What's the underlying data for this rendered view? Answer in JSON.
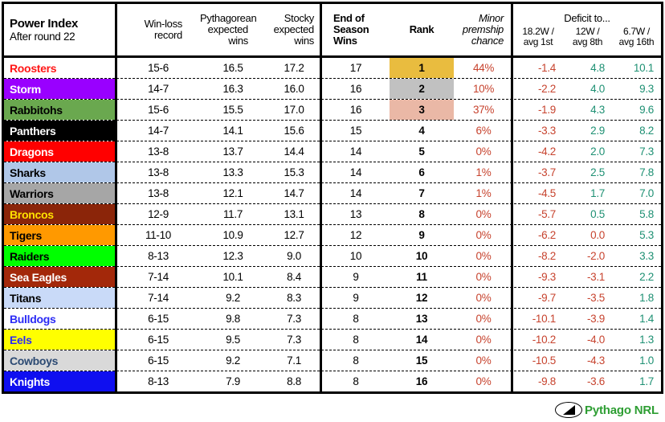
{
  "title": {
    "line1": "Power Index",
    "line2": "After round 22"
  },
  "headers": {
    "win_loss": "Win-loss\nrecord",
    "pythagorean": "Pythagorean\nexpected\nwins",
    "stocky": "Stocky\nexpected\nwins",
    "end_of_season": "End of\nSeason\nWins",
    "rank": "Rank",
    "chance": "Minor\npremship\nchance",
    "deficit_title": "Deficit to...",
    "deficit_col1": "18.2W /\navg 1st",
    "deficit_col2": "12W /\navg 8th",
    "deficit_col3": "6.7W /\navg 16th"
  },
  "colors": {
    "positive": "#1E9073",
    "negative": "#C7432E",
    "logo_green": "#2E9E33",
    "rank_gold": "#E9BC3F",
    "rank_silver": "#C1C1C1",
    "rank_bronze": "#EAB8A6"
  },
  "teams": [
    {
      "name": "Roosters",
      "bg": "#FFFFFF",
      "fg": "#FF1616",
      "record": "15-6",
      "pyth": "16.5",
      "stocky": "17.2",
      "eos": "17",
      "rank": "1",
      "rank_bg": "#E9BC3F",
      "chance": "44%",
      "d1": "-1.4",
      "d2": "4.8",
      "d3": "10.1"
    },
    {
      "name": "Storm",
      "bg": "#9900FF",
      "fg": "#FFFFFF",
      "record": "14-7",
      "pyth": "16.3",
      "stocky": "16.0",
      "eos": "16",
      "rank": "2",
      "rank_bg": "#C1C1C1",
      "chance": "10%",
      "d1": "-2.2",
      "d2": "4.0",
      "d3": "9.3"
    },
    {
      "name": "Rabbitohs",
      "bg": "#6AA84F",
      "fg": "#000000",
      "record": "15-6",
      "pyth": "15.5",
      "stocky": "17.0",
      "eos": "16",
      "rank": "3",
      "rank_bg": "#EAB8A6",
      "chance": "37%",
      "d1": "-1.9",
      "d2": "4.3",
      "d3": "9.6"
    },
    {
      "name": "Panthers",
      "bg": "#000000",
      "fg": "#FFFFFF",
      "record": "14-7",
      "pyth": "14.1",
      "stocky": "15.6",
      "eos": "15",
      "rank": "4",
      "chance": "6%",
      "d1": "-3.3",
      "d2": "2.9",
      "d3": "8.2"
    },
    {
      "name": "Dragons",
      "bg": "#FF0000",
      "fg": "#FFFFFF",
      "record": "13-8",
      "pyth": "13.7",
      "stocky": "14.4",
      "eos": "14",
      "rank": "5",
      "chance": "0%",
      "d1": "-4.2",
      "d2": "2.0",
      "d3": "7.3"
    },
    {
      "name": "Sharks",
      "bg": "#B0C7E8",
      "fg": "#000000",
      "record": "13-8",
      "pyth": "13.3",
      "stocky": "15.3",
      "eos": "14",
      "rank": "6",
      "chance": "1%",
      "d1": "-3.7",
      "d2": "2.5",
      "d3": "7.8"
    },
    {
      "name": "Warriors",
      "bg": "#A6A6A6",
      "fg": "#000000",
      "record": "13-8",
      "pyth": "12.1",
      "stocky": "14.7",
      "eos": "14",
      "rank": "7",
      "chance": "1%",
      "d1": "-4.5",
      "d2": "1.7",
      "d3": "7.0"
    },
    {
      "name": "Broncos",
      "bg": "#8B2509",
      "fg": "#FFE100",
      "record": "12-9",
      "pyth": "11.7",
      "stocky": "13.1",
      "eos": "13",
      "rank": "8",
      "chance": "0%",
      "d1": "-5.7",
      "d2": "0.5",
      "d3": "5.8"
    },
    {
      "name": "Tigers",
      "bg": "#FF9900",
      "fg": "#000000",
      "record": "11-10",
      "pyth": "10.9",
      "stocky": "12.7",
      "eos": "12",
      "rank": "9",
      "chance": "0%",
      "d1": "-6.2",
      "d2": "0.0",
      "d3": "5.3"
    },
    {
      "name": "Raiders",
      "bg": "#00FF00",
      "fg": "#000000",
      "record": "8-13",
      "pyth": "12.3",
      "stocky": "9.0",
      "eos": "10",
      "rank": "10",
      "chance": "0%",
      "d1": "-8.2",
      "d2": "-2.0",
      "d3": "3.3"
    },
    {
      "name": "Sea Eagles",
      "bg": "#A3280A",
      "fg": "#FFFFFF",
      "record": "7-14",
      "pyth": "10.1",
      "stocky": "8.4",
      "eos": "9",
      "rank": "11",
      "chance": "0%",
      "d1": "-9.3",
      "d2": "-3.1",
      "d3": "2.2"
    },
    {
      "name": "Titans",
      "bg": "#C9DAF8",
      "fg": "#000000",
      "record": "7-14",
      "pyth": "9.2",
      "stocky": "8.3",
      "eos": "9",
      "rank": "12",
      "chance": "0%",
      "d1": "-9.7",
      "d2": "-3.5",
      "d3": "1.8"
    },
    {
      "name": "Bulldogs",
      "bg": "#FFFFFF",
      "fg": "#2B2BF5",
      "record": "6-15",
      "pyth": "9.8",
      "stocky": "7.3",
      "eos": "8",
      "rank": "13",
      "chance": "0%",
      "d1": "-10.1",
      "d2": "-3.9",
      "d3": "1.4"
    },
    {
      "name": "Eels",
      "bg": "#FFFF00",
      "fg": "#2B2BF5",
      "record": "6-15",
      "pyth": "9.5",
      "stocky": "7.3",
      "eos": "8",
      "rank": "14",
      "chance": "0%",
      "d1": "-10.2",
      "d2": "-4.0",
      "d3": "1.3"
    },
    {
      "name": "Cowboys",
      "bg": "#D9D9D9",
      "fg": "#2C4A73",
      "record": "6-15",
      "pyth": "9.2",
      "stocky": "7.1",
      "eos": "8",
      "rank": "15",
      "chance": "0%",
      "d1": "-10.5",
      "d2": "-4.3",
      "d3": "1.0"
    },
    {
      "name": "Knights",
      "bg": "#0F0FF0",
      "fg": "#FFFFFF",
      "record": "8-13",
      "pyth": "7.9",
      "stocky": "8.8",
      "eos": "8",
      "rank": "16",
      "chance": "0%",
      "d1": "-9.8",
      "d2": "-3.6",
      "d3": "1.7"
    }
  ],
  "logo": {
    "label": "Pythago NRL"
  },
  "chart_data": {
    "type": "table",
    "title": "Power Index After round 22",
    "columns": [
      "Team",
      "Win-loss record",
      "Pythagorean expected wins",
      "Stocky expected wins",
      "End of Season Wins",
      "Rank",
      "Minor premship chance",
      "Deficit to 18.2W / avg 1st",
      "Deficit to 12W / avg 8th",
      "Deficit to 6.7W / avg 16th"
    ],
    "rows": [
      [
        "Roosters",
        "15-6",
        16.5,
        17.2,
        17,
        1,
        "44%",
        -1.4,
        4.8,
        10.1
      ],
      [
        "Storm",
        "14-7",
        16.3,
        16.0,
        16,
        2,
        "10%",
        -2.2,
        4.0,
        9.3
      ],
      [
        "Rabbitohs",
        "15-6",
        15.5,
        17.0,
        16,
        3,
        "37%",
        -1.9,
        4.3,
        9.6
      ],
      [
        "Panthers",
        "14-7",
        14.1,
        15.6,
        15,
        4,
        "6%",
        -3.3,
        2.9,
        8.2
      ],
      [
        "Dragons",
        "13-8",
        13.7,
        14.4,
        14,
        5,
        "0%",
        -4.2,
        2.0,
        7.3
      ],
      [
        "Sharks",
        "13-8",
        13.3,
        15.3,
        14,
        6,
        "1%",
        -3.7,
        2.5,
        7.8
      ],
      [
        "Warriors",
        "13-8",
        12.1,
        14.7,
        14,
        7,
        "1%",
        -4.5,
        1.7,
        7.0
      ],
      [
        "Broncos",
        "12-9",
        11.7,
        13.1,
        13,
        8,
        "0%",
        -5.7,
        0.5,
        5.8
      ],
      [
        "Tigers",
        "11-10",
        10.9,
        12.7,
        12,
        9,
        "0%",
        -6.2,
        0.0,
        5.3
      ],
      [
        "Raiders",
        "8-13",
        12.3,
        9.0,
        10,
        10,
        "0%",
        -8.2,
        -2.0,
        3.3
      ],
      [
        "Sea Eagles",
        "7-14",
        10.1,
        8.4,
        9,
        11,
        "0%",
        -9.3,
        -3.1,
        2.2
      ],
      [
        "Titans",
        "7-14",
        9.2,
        8.3,
        9,
        12,
        "0%",
        -9.7,
        -3.5,
        1.8
      ],
      [
        "Bulldogs",
        "6-15",
        9.8,
        7.3,
        8,
        13,
        "0%",
        -10.1,
        -3.9,
        1.4
      ],
      [
        "Eels",
        "6-15",
        9.5,
        7.3,
        8,
        14,
        "0%",
        -10.2,
        -4.0,
        1.3
      ],
      [
        "Cowboys",
        "6-15",
        9.2,
        7.1,
        8,
        15,
        "0%",
        -10.5,
        -4.3,
        1.0
      ],
      [
        "Knights",
        "8-13",
        7.9,
        8.8,
        8,
        16,
        "0%",
        -9.8,
        -3.6,
        1.7
      ]
    ],
    "notes": "Rank 1 highlighted gold, rank 2 silver, rank 3 bronze. Chance column red; deficit values red when <= 0, teal-green when > 0."
  }
}
